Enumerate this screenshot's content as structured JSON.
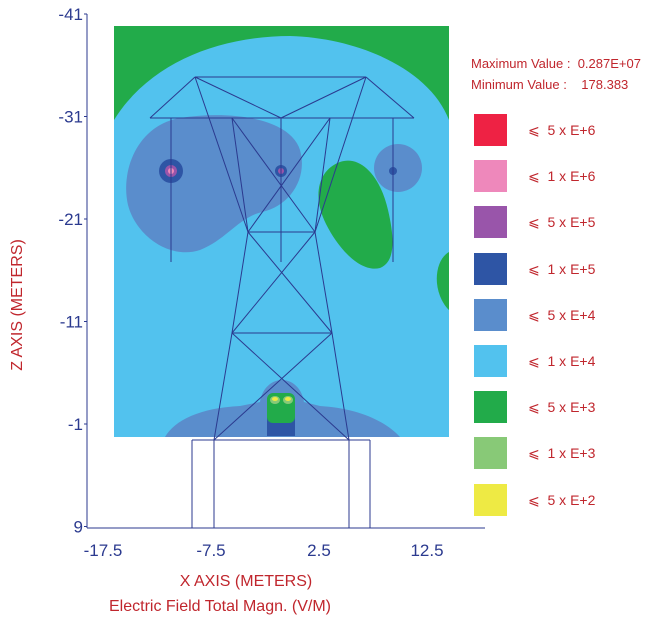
{
  "chart_data": {
    "type": "heatmap",
    "title": "Electric Field Total Magn. (V/M)",
    "xlabel": "X AXIS  (METERS)",
    "ylabel": "Z AXIS  (METERS)",
    "x_ticks": [
      "-17.5",
      "-7.5",
      "2.5",
      "12.5"
    ],
    "y_ticks": [
      "-41",
      "-31",
      "-21",
      "-11",
      "-1",
      "9"
    ],
    "xlim": [
      -20,
      22
    ],
    "zlim": [
      -41,
      9
    ],
    "max_label": "Maximum Value :",
    "max_value": "0.287E+07",
    "min_label": "Minimum Value :",
    "min_value": "178.383",
    "legend": [
      {
        "symbol": "⩽",
        "label": "5 x E+6",
        "color": "#ee2244"
      },
      {
        "symbol": "⩽",
        "label": "1 x E+6",
        "color": "#ee88bb"
      },
      {
        "symbol": "⩽",
        "label": "5 x E+5",
        "color": "#9955aa"
      },
      {
        "symbol": "⩽",
        "label": "1 x E+5",
        "color": "#2e55a5"
      },
      {
        "symbol": "⩽",
        "label": "5 x E+4",
        "color": "#5a8dcc"
      },
      {
        "symbol": "⩽",
        "label": "1 x E+4",
        "color": "#52c2ee"
      },
      {
        "symbol": "⩽",
        "label": "5 x E+3",
        "color": "#22ab4a"
      },
      {
        "symbol": "⩽",
        "label": "1 x E+3",
        "color": "#88c977"
      },
      {
        "symbol": "⩽",
        "label": "5 x E+2",
        "color": "#eeea44"
      }
    ]
  }
}
